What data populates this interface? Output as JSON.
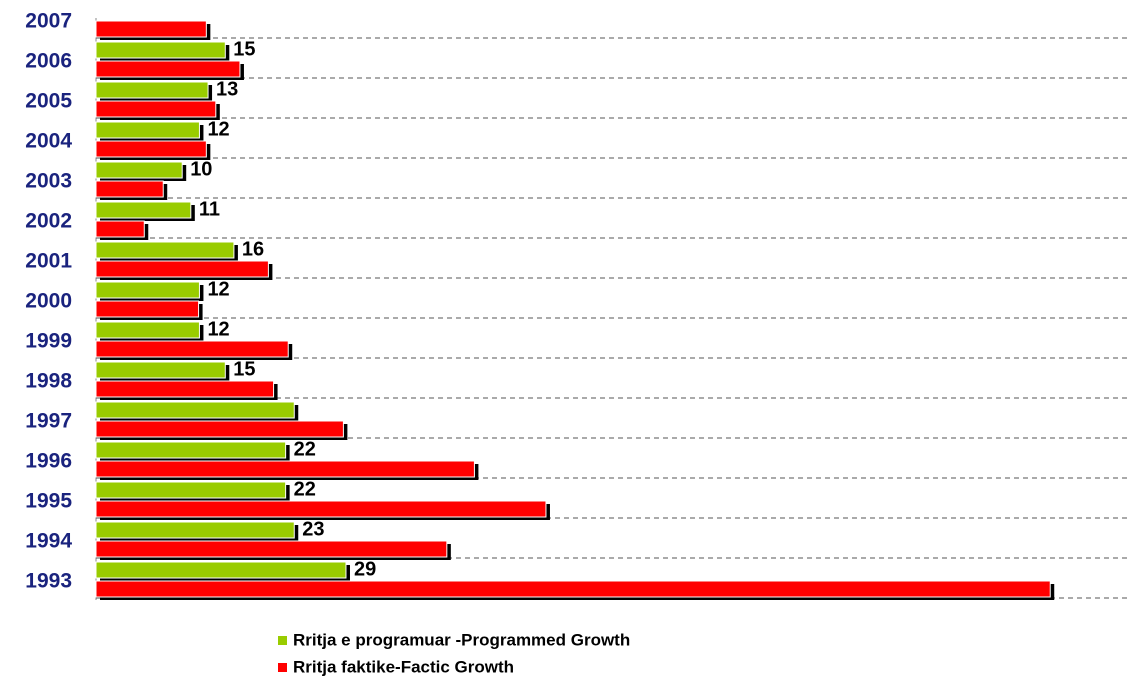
{
  "chart_data": {
    "type": "barh",
    "categories": [
      "2007",
      "2006",
      "2005",
      "2004",
      "2003",
      "2002",
      "2001",
      "2000",
      "1999",
      "1998",
      "1997",
      "1996",
      "1995",
      "1994",
      "1993"
    ],
    "series": [
      {
        "name": "Rritja e programuar -Programmed Growth",
        "color": "#99cc00",
        "values": [
          null,
          15,
          13,
          12,
          10,
          11,
          16,
          12,
          12,
          15,
          23,
          22,
          22,
          23,
          29
        ],
        "value_labels": [
          null,
          "15",
          "13",
          "12",
          "10",
          "11",
          "16",
          "12",
          "12",
          "15",
          null,
          "22",
          "22",
          "23",
          "29"
        ]
      },
      {
        "name": "Rritja faktike-Factic Growth",
        "color": "#ff0000",
        "values": [
          12.8,
          16.7,
          13.9,
          12.8,
          7.8,
          5.6,
          20,
          11.9,
          22.3,
          20.6,
          28.7,
          43.9,
          52.2,
          40.7,
          110.7
        ]
      }
    ],
    "xlim": [
      0,
      120
    ],
    "grid": true
  }
}
